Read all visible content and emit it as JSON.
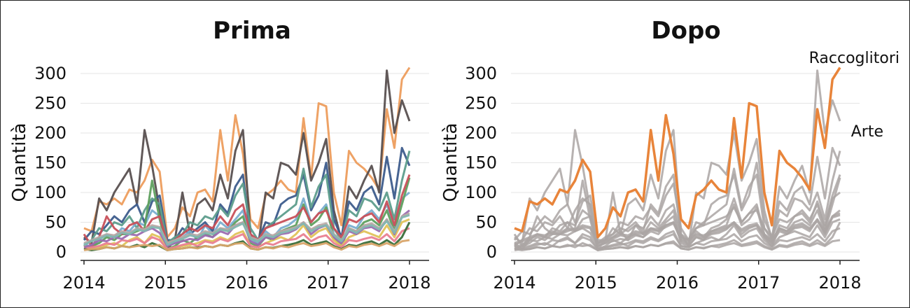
{
  "chart_data": [
    {
      "type": "line",
      "title": "Prima",
      "ylabel": "Quantità",
      "xlabel": "",
      "ylim": [
        0,
        310
      ],
      "yticks": [
        0,
        50,
        100,
        150,
        200,
        250,
        300
      ],
      "xlim": [
        2014,
        2018.25
      ],
      "xticks": [
        "2014",
        "2015",
        "2016",
        "2017",
        "2018"
      ],
      "grid": true,
      "colors": [
        "#ed9d5d",
        "#585050",
        "#3d5c8c",
        "#5d9d8c",
        "#7aaed0",
        "#5fa05f",
        "#e0c35a",
        "#c8505a",
        "#e97f91",
        "#9c6bb0",
        "#3a6e3a",
        "#b9a9a5",
        "#d9a56a",
        "#83b6b0"
      ],
      "series": [
        {
          "values": [
            40,
            35,
            85,
            80,
            90,
            80,
            105,
            100,
            120,
            155,
            135,
            25,
            40,
            75,
            60,
            100,
            105,
            85,
            205,
            120,
            230,
            165,
            55,
            40,
            95,
            105,
            120,
            105,
            100,
            225,
            125,
            250,
            245,
            100,
            45,
            170,
            150,
            140,
            125,
            105,
            240,
            175,
            290,
            310
          ]
        },
        {
          "values": [
            25,
            15,
            90,
            70,
            100,
            120,
            140,
            80,
            205,
            145,
            70,
            5,
            20,
            100,
            30,
            80,
            90,
            70,
            130,
            90,
            170,
            205,
            30,
            10,
            100,
            90,
            150,
            145,
            130,
            200,
            120,
            150,
            190,
            70,
            20,
            110,
            90,
            120,
            145,
            100,
            305,
            200,
            255,
            220
          ]
        },
        {
          "values": [
            20,
            35,
            30,
            45,
            60,
            50,
            70,
            80,
            50,
            85,
            95,
            20,
            20,
            40,
            30,
            40,
            50,
            35,
            80,
            65,
            110,
            130,
            25,
            20,
            50,
            45,
            80,
            90,
            95,
            130,
            70,
            95,
            150,
            55,
            25,
            85,
            70,
            100,
            110,
            80,
            160,
            90,
            175,
            145
          ]
        },
        {
          "values": [
            10,
            20,
            40,
            35,
            50,
            45,
            60,
            40,
            70,
            90,
            80,
            15,
            25,
            30,
            50,
            45,
            60,
            55,
            75,
            60,
            95,
            115,
            40,
            20,
            40,
            50,
            60,
            70,
            80,
            140,
            75,
            110,
            130,
            40,
            20,
            70,
            60,
            90,
            85,
            70,
            100,
            55,
            120,
            170
          ]
        },
        {
          "values": [
            15,
            5,
            20,
            30,
            25,
            40,
            35,
            50,
            45,
            70,
            60,
            10,
            15,
            25,
            35,
            20,
            45,
            30,
            50,
            40,
            55,
            70,
            20,
            15,
            35,
            25,
            40,
            45,
            55,
            90,
            50,
            65,
            80,
            30,
            15,
            45,
            40,
            60,
            70,
            55,
            80,
            40,
            90,
            100
          ]
        },
        {
          "values": [
            5,
            10,
            15,
            25,
            20,
            30,
            30,
            35,
            40,
            120,
            55,
            5,
            10,
            20,
            15,
            25,
            30,
            25,
            40,
            35,
            50,
            60,
            15,
            10,
            25,
            20,
            35,
            40,
            45,
            80,
            45,
            55,
            75,
            25,
            10,
            40,
            35,
            50,
            55,
            45,
            70,
            35,
            80,
            125
          ]
        },
        {
          "values": [
            10,
            5,
            8,
            12,
            15,
            10,
            20,
            25,
            15,
            30,
            25,
            5,
            8,
            10,
            12,
            15,
            20,
            18,
            25,
            20,
            30,
            35,
            10,
            8,
            15,
            20,
            25,
            20,
            30,
            45,
            25,
            35,
            40,
            20,
            10,
            25,
            30,
            35,
            30,
            25,
            45,
            25,
            50,
            55
          ]
        },
        {
          "values": [
            30,
            10,
            25,
            60,
            40,
            30,
            45,
            50,
            35,
            55,
            60,
            15,
            20,
            30,
            40,
            35,
            45,
            40,
            60,
            45,
            70,
            80,
            30,
            20,
            40,
            45,
            50,
            55,
            60,
            75,
            50,
            65,
            70,
            40,
            25,
            55,
            50,
            60,
            65,
            50,
            85,
            45,
            95,
            130
          ]
        },
        {
          "values": [
            5,
            8,
            10,
            15,
            12,
            20,
            18,
            22,
            15,
            25,
            20,
            5,
            8,
            12,
            15,
            10,
            18,
            15,
            22,
            18,
            25,
            30,
            10,
            8,
            15,
            12,
            18,
            20,
            22,
            30,
            18,
            25,
            28,
            15,
            8,
            20,
            18,
            22,
            25,
            20,
            30,
            18,
            35,
            40
          ]
        },
        {
          "values": [
            8,
            12,
            20,
            18,
            25,
            22,
            30,
            28,
            35,
            40,
            32,
            10,
            15,
            18,
            22,
            20,
            28,
            25,
            35,
            30,
            45,
            50,
            18,
            12,
            25,
            22,
            30,
            32,
            38,
            50,
            30,
            40,
            45,
            25,
            15,
            35,
            30,
            40,
            42,
            35,
            55,
            30,
            60,
            70
          ]
        },
        {
          "values": [
            5,
            3,
            5,
            8,
            6,
            10,
            8,
            12,
            8,
            15,
            10,
            3,
            5,
            6,
            8,
            7,
            10,
            8,
            12,
            10,
            15,
            18,
            6,
            4,
            8,
            7,
            10,
            12,
            15,
            20,
            12,
            15,
            18,
            10,
            5,
            12,
            10,
            15,
            18,
            12,
            20,
            12,
            25,
            50
          ]
        },
        {
          "values": [
            15,
            20,
            25,
            30,
            28,
            35,
            32,
            40,
            38,
            45,
            42,
            15,
            20,
            25,
            30,
            28,
            35,
            32,
            40,
            38,
            45,
            50,
            25,
            20,
            30,
            28,
            35,
            38,
            42,
            50,
            38,
            45,
            48,
            30,
            20,
            40,
            35,
            45,
            48,
            40,
            55,
            35,
            60,
            65
          ]
        },
        {
          "values": [
            3,
            5,
            5,
            8,
            6,
            10,
            8,
            10,
            12,
            10,
            12,
            3,
            5,
            6,
            8,
            6,
            10,
            8,
            12,
            10,
            14,
            15,
            6,
            4,
            8,
            6,
            10,
            8,
            12,
            15,
            10,
            12,
            15,
            8,
            4,
            10,
            8,
            12,
            14,
            10,
            15,
            10,
            18,
            20
          ]
        },
        {
          "values": [
            12,
            18,
            22,
            28,
            25,
            32,
            30,
            38,
            35,
            42,
            40,
            12,
            18,
            22,
            28,
            25,
            32,
            30,
            38,
            35,
            42,
            48,
            22,
            18,
            28,
            25,
            32,
            35,
            40,
            48,
            35,
            42,
            45,
            28,
            18,
            38,
            32,
            42,
            45,
            38,
            52,
            32,
            58,
            62
          ]
        }
      ]
    },
    {
      "type": "line",
      "title": "Dopo",
      "ylabel": "Quantità",
      "xlabel": "",
      "ylim": [
        0,
        310
      ],
      "yticks": [
        0,
        50,
        100,
        150,
        200,
        250,
        300
      ],
      "xlim": [
        2014,
        2018.25
      ],
      "xticks": [
        "2014",
        "2015",
        "2016",
        "2017",
        "2018"
      ],
      "grid": true,
      "colors": {
        "highlight": "#e8843a",
        "context": "#aaa5a3"
      },
      "annotations": [
        "Raccoglitori",
        "Arte"
      ]
    }
  ]
}
